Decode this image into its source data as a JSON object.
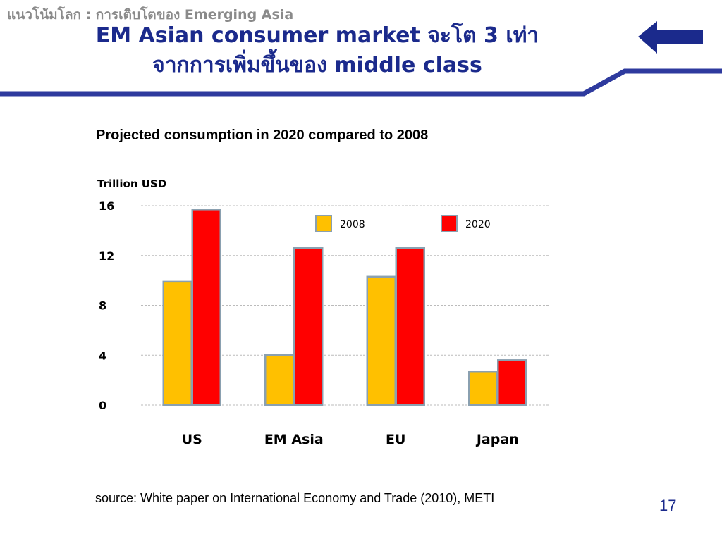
{
  "slide": {
    "breadcrumb": "แนวโน้มโลก : การเติบโตของ Emerging Asia",
    "title_line1": "EM Asian consumer market จะโต 3 เท่า",
    "title_line2": "จากการเพิ่มขึ้นของ middle class",
    "subtitle": "Projected consumption in 2020 compared to 2008",
    "source": "source: White paper on International Economy and Trade (2010), METI",
    "page_number": "17",
    "colors": {
      "title": "#1b2a8c",
      "header_line": "#2e3a9e",
      "back_button": "#1b2a8c"
    },
    "back_button_icon": "left-arrow-icon"
  },
  "chart_data": {
    "type": "bar",
    "ylabel": "Trillion USD",
    "categories": [
      "US",
      "EM Asia",
      "EU",
      "Japan"
    ],
    "series": [
      {
        "name": "2008",
        "values": [
          9.9,
          4.0,
          10.3,
          2.7
        ],
        "color": "#ffc000"
      },
      {
        "name": "2020",
        "values": [
          15.7,
          12.6,
          12.6,
          3.6
        ],
        "color": "#ff0000"
      }
    ],
    "yticks": [
      0,
      4,
      8,
      12,
      16
    ],
    "ylim": [
      0,
      16
    ],
    "grid": true,
    "legend_position": "top-right"
  }
}
